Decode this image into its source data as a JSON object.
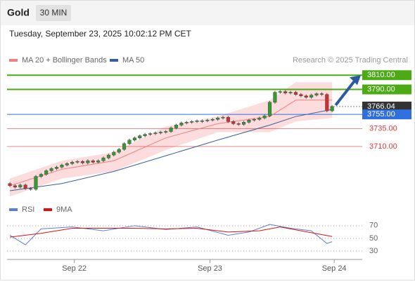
{
  "header": {
    "symbol": "Gold",
    "timeframe": "30 MIN",
    "timestamp": "Tuesday, September 23, 2025 10:02:12 PM CET"
  },
  "chart_data": [
    {
      "type": "candlestick",
      "credit": "Research © 2025 Trading Central",
      "ylim": [
        3645,
        3822
      ],
      "first_open": 3658,
      "closes": [
        3655,
        3653,
        3656,
        3651,
        3650,
        3668,
        3671,
        3676,
        3679,
        3681,
        3684,
        3686,
        3688,
        3689,
        3687,
        3690,
        3688,
        3690,
        3694,
        3698,
        3702,
        3706,
        3714,
        3719,
        3722,
        3725,
        3727,
        3728,
        3729,
        3730,
        3731,
        3736,
        3740,
        3743,
        3744,
        3745,
        3746,
        3746,
        3747,
        3748,
        3750,
        3751,
        3745,
        3742,
        3741,
        3744,
        3747,
        3748,
        3750,
        3753,
        3772,
        3786,
        3787,
        3785,
        3786,
        3783,
        3781,
        3779,
        3782,
        3784,
        3783,
        3760,
        3766
      ],
      "series": [
        {
          "name": "MA 20 + Bollinger Bands",
          "color": "#f08080",
          "x": [
            0,
            10,
            20,
            30,
            40,
            50,
            55,
            62
          ],
          "values": [
            3655,
            3678,
            3690,
            3722,
            3742,
            3752,
            3775,
            3775
          ]
        },
        {
          "name": "MA 50",
          "color": "#3a5f9e",
          "x": [
            0,
            10,
            20,
            30,
            40,
            50,
            55,
            62
          ],
          "values": [
            3648,
            3658,
            3675,
            3697,
            3719,
            3740,
            3752,
            3762
          ]
        }
      ],
      "band": {
        "color": "#fbd3d3",
        "x": [
          0,
          10,
          20,
          30,
          40,
          50,
          55,
          62
        ],
        "upper": [
          3665,
          3690,
          3702,
          3738,
          3752,
          3775,
          3800,
          3800
        ],
        "lower": [
          3640,
          3665,
          3675,
          3705,
          3730,
          3730,
          3745,
          3750
        ]
      },
      "levels": [
        {
          "value": 3810,
          "label": "3810.00",
          "color": "#4caa14",
          "style": "box"
        },
        {
          "value": 3790,
          "label": "3790.00",
          "color": "#4caa14",
          "style": "box"
        },
        {
          "value": 3766.04,
          "label": "3766.04",
          "color": "#333333",
          "style": "current"
        },
        {
          "value": 3755,
          "label": "3755.00",
          "color": "#2f6fde",
          "style": "box"
        },
        {
          "value": 3735,
          "label": "3735.00",
          "color": "#e23b3b",
          "style": "text"
        },
        {
          "value": 3710,
          "label": "3710.00",
          "color": "#e23b3b",
          "style": "text"
        }
      ]
    },
    {
      "type": "line",
      "ylim": [
        17,
        94
      ],
      "yticks": [
        30,
        50,
        70
      ],
      "xticks": [
        {
          "value": 12.4,
          "label": "Sep 22"
        },
        {
          "value": 38.5,
          "label": "Sep 23"
        },
        {
          "value": 62.4,
          "label": "Sep 24"
        }
      ],
      "series": [
        {
          "name": "RSI",
          "color": "#5b7fd6",
          "x": [
            0,
            3,
            6,
            12,
            18,
            24,
            30,
            36,
            42,
            46,
            50,
            54,
            58,
            61,
            62
          ],
          "values": [
            55,
            40,
            65,
            68,
            62,
            70,
            64,
            68,
            55,
            60,
            72,
            66,
            62,
            42,
            45
          ]
        },
        {
          "name": "9MA",
          "color": "#e01010",
          "x": [
            0,
            6,
            12,
            18,
            24,
            30,
            36,
            42,
            48,
            52,
            56,
            62
          ],
          "values": [
            52,
            58,
            66,
            66,
            66,
            65,
            66,
            60,
            62,
            68,
            62,
            53
          ]
        }
      ]
    }
  ]
}
